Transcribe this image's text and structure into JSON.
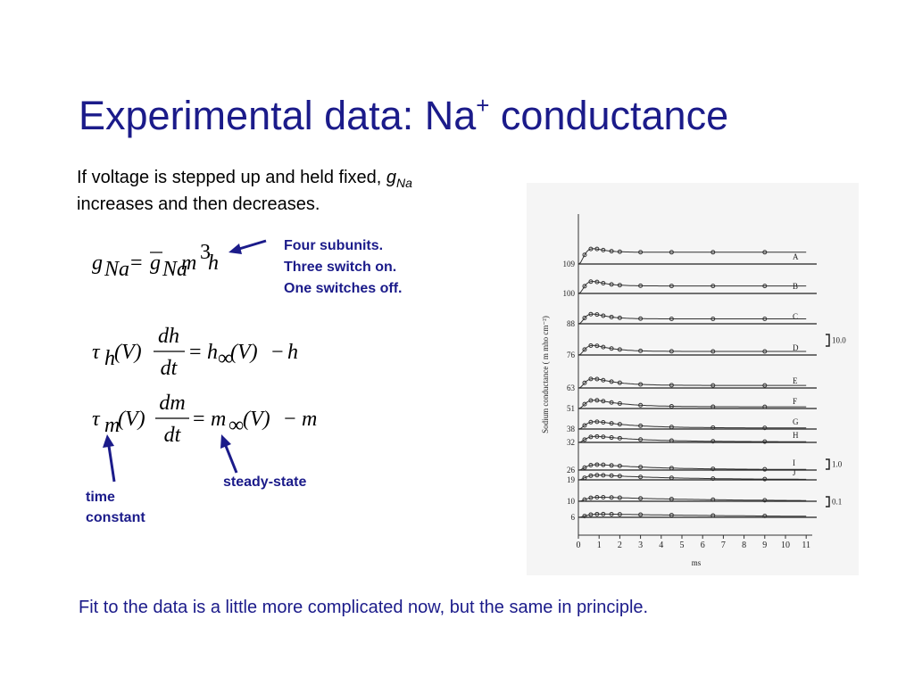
{
  "title": {
    "text": "Experimental data: Na",
    "sup": "+",
    "rest": " conductance"
  },
  "intro": {
    "line1": "If voltage is stepped up and held fixed, ",
    "var": "g",
    "sub": "Na",
    "line2": "increases and then decreases."
  },
  "equations": [
    [
      "g",
      "Na",
      "=",
      "g",
      "Na",
      "m",
      "3",
      "h"
    ],
    [
      "τ",
      "h",
      "(V)",
      "dh",
      "dt",
      "=",
      "h",
      "∞",
      "(V)",
      "−",
      "h"
    ],
    [
      "τ",
      "m",
      "(V)",
      "dm",
      "dt",
      "=",
      "m",
      "∞",
      "(V)",
      "−",
      "m"
    ]
  ],
  "annotations": {
    "subunits": [
      "Four subunits.",
      "Three switch on.",
      "One switches off."
    ],
    "steady_state": "steady-state",
    "time_constant": [
      "time",
      "constant"
    ]
  },
  "figure": {
    "y_label": "Sodium conductance ( m mho  cm⁻²)",
    "x_label": "ms",
    "xticks": [
      0,
      1,
      2,
      3,
      4,
      5,
      6,
      7,
      8,
      9,
      10,
      11
    ],
    "traces": [
      {
        "voltage": "109",
        "label": "A"
      },
      {
        "voltage": "100",
        "label": "B"
      },
      {
        "voltage": "88",
        "label": "C"
      },
      {
        "voltage": "76",
        "label": "D"
      },
      {
        "voltage": "63",
        "label": "E"
      },
      {
        "voltage": "51",
        "label": "F"
      },
      {
        "voltage": "38",
        "label": "G"
      },
      {
        "voltage": "32",
        "label": "H"
      },
      {
        "voltage": "26",
        "label": "I"
      },
      {
        "voltage": "19",
        "label": "J"
      },
      {
        "voltage": "10",
        "label": null
      },
      {
        "voltage": "6",
        "label": null
      }
    ],
    "scale_bars": [
      "10.0",
      "1.0",
      "0.1"
    ]
  },
  "footer": "Fit to the data is a little more complicated now, but the same in principle."
}
